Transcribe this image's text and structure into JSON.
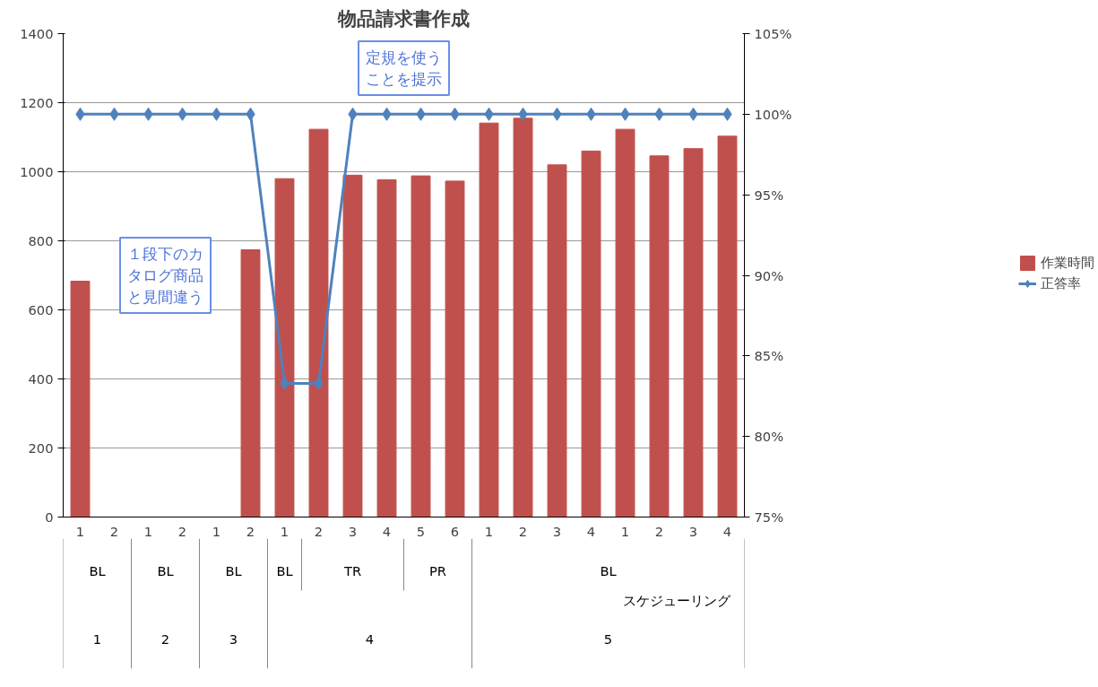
{
  "chart_data": {
    "type": "bar",
    "title": "物品請求書作成",
    "categories": [
      "1",
      "2",
      "1",
      "2",
      "1",
      "2",
      "1",
      "2",
      "3",
      "4",
      "5",
      "6",
      "1",
      "2",
      "3",
      "4",
      "1",
      "2",
      "3",
      "4"
    ],
    "series": [
      {
        "name": "作業時間",
        "color": "#c0504d",
        "values": [
          683,
          null,
          null,
          null,
          null,
          774,
          980,
          1123,
          990,
          977,
          988,
          973,
          1141,
          1155,
          1020,
          1060,
          1123,
          1046,
          1067,
          1103
        ]
      },
      {
        "name": "正答率",
        "type": "line",
        "axis": "y2",
        "color": "#4f81bd",
        "marker": "diamond",
        "values": [
          100,
          100,
          100,
          100,
          100,
          100,
          83.3,
          83.3,
          100,
          100,
          100,
          100,
          100,
          100,
          100,
          100,
          100,
          100,
          100,
          100
        ]
      }
    ],
    "ylim": [
      0,
      1400
    ],
    "yticks": [
      0,
      200,
      400,
      600,
      800,
      1000,
      1200,
      1400
    ],
    "y2lim": [
      75,
      105
    ],
    "y2ticks": [
      {
        "value": 75,
        "label": "75%"
      },
      {
        "value": 80,
        "label": "80%"
      },
      {
        "value": 85,
        "label": "85%"
      },
      {
        "value": 90,
        "label": "90%"
      },
      {
        "value": 95,
        "label": "95%"
      },
      {
        "value": 100,
        "label": "100%"
      },
      {
        "value": 105,
        "label": "105%"
      }
    ],
    "grid": "y",
    "legend": "right",
    "annotations": [
      "１段下のカタログ商品と見間違う",
      "定規を使うことを提示",
      "BL",
      "BL",
      "BL",
      "BL",
      "TR",
      "PR",
      "BL",
      "スケジューリング",
      "1",
      "2",
      "3",
      "4",
      "5"
    ]
  }
}
